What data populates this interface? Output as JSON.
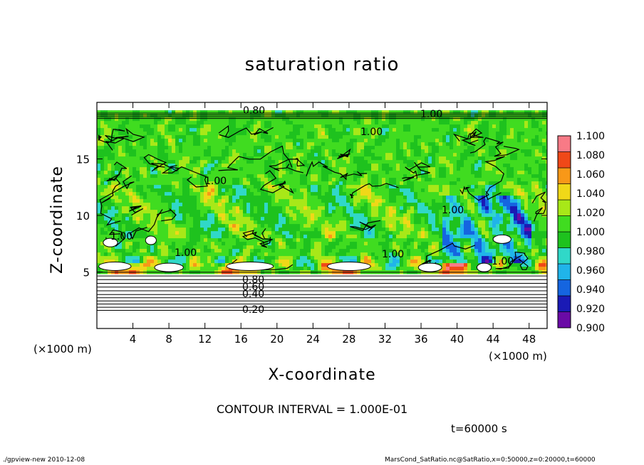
{
  "chart_data": {
    "type": "heatmap",
    "title": "saturation ratio",
    "xlabel": "X-coordinate",
    "ylabel": "Z-coordinate",
    "x_unit_label_left": "(×1000 m)",
    "x_unit_label_right": "(×1000 m)",
    "xlim": [
      0,
      50
    ],
    "ylim": [
      0,
      20
    ],
    "x_ticks": [
      "4",
      "8",
      "12",
      "16",
      "20",
      "24",
      "28",
      "32",
      "36",
      "40",
      "44",
      "48"
    ],
    "y_ticks": [
      "5",
      "10",
      "15"
    ],
    "colorbar": {
      "range": [
        0.9,
        1.1
      ],
      "levels": [
        "1.100",
        "1.080",
        "1.060",
        "1.040",
        "1.020",
        "1.000",
        "0.980",
        "0.960",
        "0.940",
        "0.920",
        "0.900"
      ],
      "colors": [
        "#6a0aa6",
        "#1a1ab5",
        "#1565e0",
        "#20b4ea",
        "#30d8c8",
        "#1ec21e",
        "#40dc20",
        "#a8e818",
        "#f0d818",
        "#f89818",
        "#f04818",
        "#f87a86"
      ]
    },
    "contour_labels": [
      "0.80",
      "1.00",
      "1.00",
      "1.00",
      "1.00",
      "1.00",
      "1.00",
      "1.00",
      "1.00",
      "0.80",
      "0.60",
      "0.40",
      "0.20"
    ],
    "contour_interval_text": "CONTOUR INTERVAL = 1.000E-01",
    "time_text": "t=60000 s"
  },
  "footer": {
    "left": "./gpview-new   2010-12-08",
    "right": "MarsCond_SatRatio.nc@SatRatio,x=0:50000,z=0:20000,t=60000"
  }
}
